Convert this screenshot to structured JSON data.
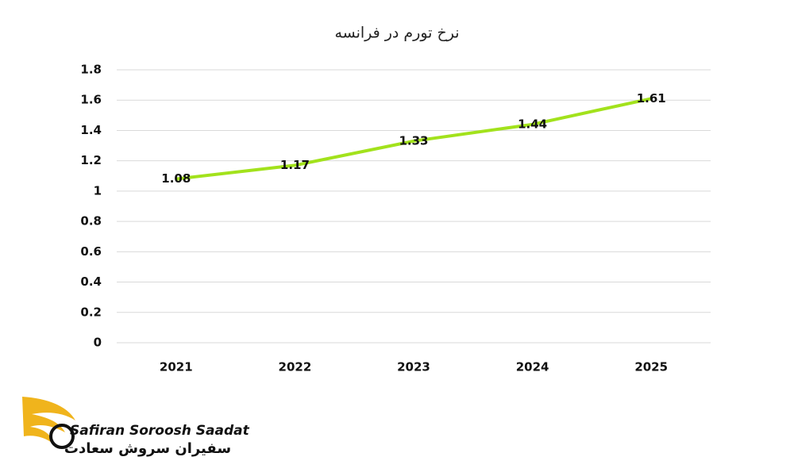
{
  "chart_data": {
    "type": "line",
    "title": "نرخ تورم در فرانسه",
    "categories": [
      "2021",
      "2022",
      "2023",
      "2024",
      "2025"
    ],
    "series": [
      {
        "name": "نرخ تورم",
        "color": "#a2e21c",
        "values": [
          1.08,
          1.17,
          1.33,
          1.44,
          1.61
        ]
      }
    ],
    "ylim": [
      0,
      1.8
    ],
    "yticks": [
      0,
      0.2,
      0.4,
      0.6,
      0.8,
      1,
      1.2,
      1.4,
      1.6,
      1.8
    ],
    "grid": true,
    "data_labels": true
  },
  "logo": {
    "name": "Safiran Soroosh Saadat",
    "name_fa": "سفیران سروش سعادت"
  }
}
